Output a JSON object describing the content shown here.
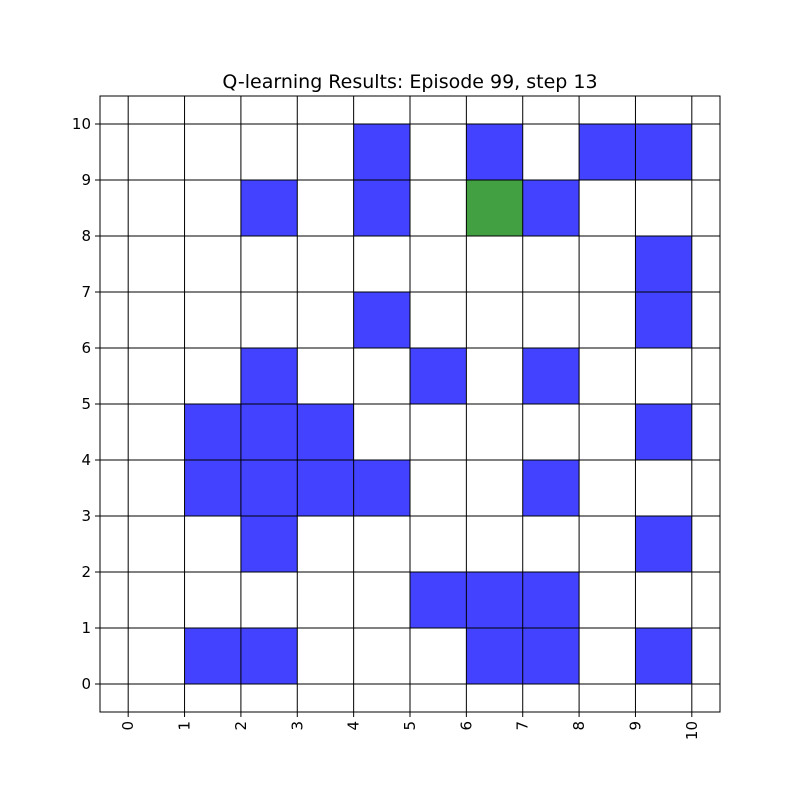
{
  "chart_data": {
    "type": "heatmap",
    "title": "Q-learning Results: Episode 99, step 13",
    "xlabel": "",
    "ylabel": "",
    "xlim": [
      -0.5,
      10.5
    ],
    "ylim": [
      -0.5,
      10.5
    ],
    "x_ticks": [
      "0",
      "1",
      "2",
      "3",
      "4",
      "5",
      "6",
      "7",
      "8",
      "9",
      "10"
    ],
    "y_ticks": [
      "0",
      "1",
      "2",
      "3",
      "4",
      "5",
      "6",
      "7",
      "8",
      "9",
      "10"
    ],
    "x_tick_rotation": "vertical",
    "grid": true,
    "colors": {
      "obstacle": "#4242ff",
      "agent": "#42a042",
      "empty": "#ffffff",
      "grid": "#000000"
    },
    "obstacle_cells": [
      [
        1,
        0
      ],
      [
        2,
        0
      ],
      [
        6,
        0
      ],
      [
        7,
        0
      ],
      [
        9,
        0
      ],
      [
        5,
        1
      ],
      [
        6,
        1
      ],
      [
        7,
        1
      ],
      [
        2,
        2
      ],
      [
        9,
        2
      ],
      [
        1,
        3
      ],
      [
        2,
        3
      ],
      [
        3,
        3
      ],
      [
        4,
        3
      ],
      [
        7,
        3
      ],
      [
        1,
        4
      ],
      [
        2,
        4
      ],
      [
        3,
        4
      ],
      [
        9,
        4
      ],
      [
        2,
        5
      ],
      [
        5,
        5
      ],
      [
        7,
        5
      ],
      [
        4,
        6
      ],
      [
        9,
        6
      ],
      [
        9,
        7
      ],
      [
        2,
        8
      ],
      [
        4,
        8
      ],
      [
        7,
        8
      ],
      [
        4,
        9
      ],
      [
        6,
        9
      ],
      [
        8,
        9
      ],
      [
        9,
        9
      ]
    ],
    "agent_cell": [
      6,
      8
    ]
  }
}
